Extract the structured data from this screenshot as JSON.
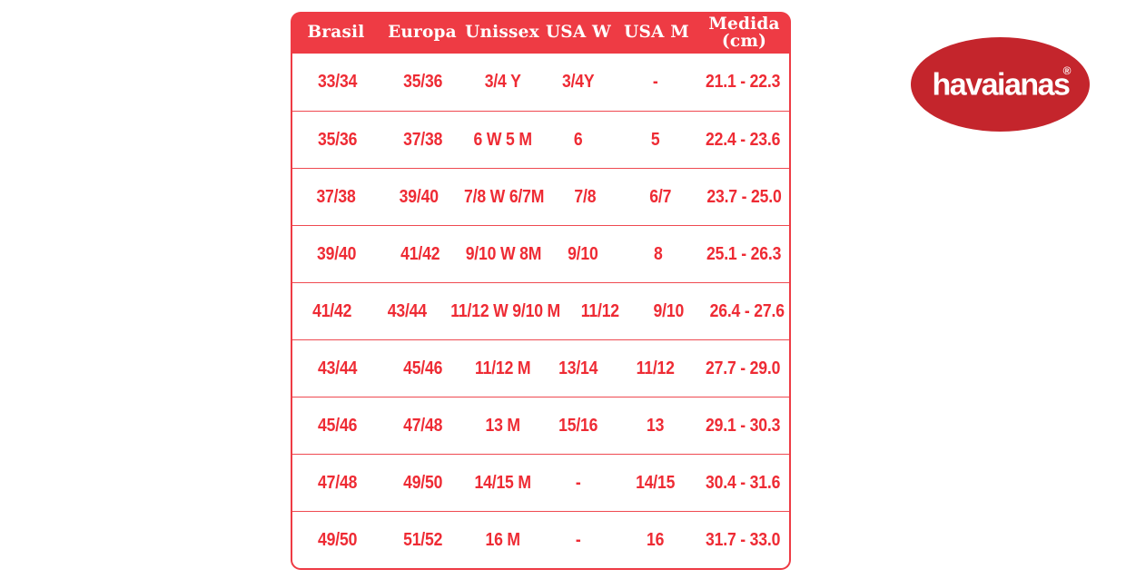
{
  "chart_data": {
    "type": "table",
    "title": "",
    "columns": [
      "Brasil",
      "Europa",
      "Unissex",
      "USA W",
      "USA M",
      "Medida\n(cm)"
    ],
    "rows": [
      [
        "33/34",
        "35/36",
        "3/4 Y",
        "3/4Y",
        "-",
        "21.1 - 22.3"
      ],
      [
        "35/36",
        "37/38",
        "6 W 5 M",
        "6",
        "5",
        "22.4 - 23.6"
      ],
      [
        "37/38",
        "39/40",
        "7/8 W 6/7M",
        "7/8",
        "6/7",
        "23.7 - 25.0"
      ],
      [
        "39/40",
        "41/42",
        "9/10 W 8M",
        "9/10",
        "8",
        "25.1 - 26.3"
      ],
      [
        "41/42",
        "43/44",
        "11/12 W 9/10 M",
        "11/12",
        "9/10",
        "26.4 - 27.6"
      ],
      [
        "43/44",
        "45/46",
        "11/12 M",
        "13/14",
        "11/12",
        "27.7 - 29.0"
      ],
      [
        "45/46",
        "47/48",
        "13 M",
        "15/16",
        "13",
        "29.1 - 30.3"
      ],
      [
        "47/48",
        "49/50",
        "14/15 M",
        "-",
        "14/15",
        "30.4 - 31.6"
      ],
      [
        "49/50",
        "51/52",
        "16 M",
        "-",
        "16",
        "31.7 - 33.0"
      ]
    ]
  },
  "logo": {
    "wordmark": "havaianas",
    "registered": "®"
  },
  "colors": {
    "table_red": "#ee3b44",
    "cell_text_red": "#ee2b34",
    "row_line_red": "#ef4a51",
    "logo_red": "#c4252c",
    "header_text": "#ffffff"
  }
}
